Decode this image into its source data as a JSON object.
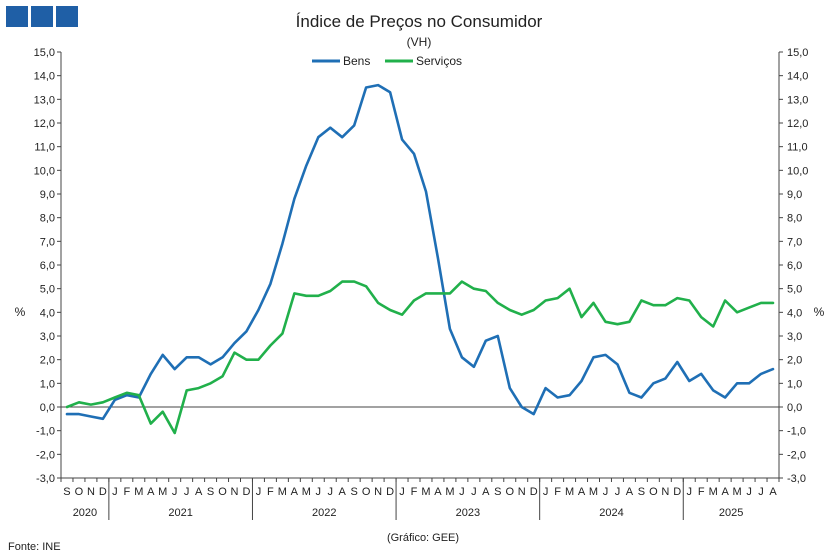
{
  "header": {
    "logo_icon": "ine-logo-icon"
  },
  "chart_data": {
    "type": "line",
    "title": "Índice de Preços no Consumidor",
    "subtitle": "(VH)",
    "ylabel_left": "%",
    "ylabel_right": "%",
    "ylim": [
      -3.0,
      15.0
    ],
    "ytick_step": 1.0,
    "yticks": [
      "-3,0",
      "-2,0",
      "-1,0",
      "0,0",
      "1,0",
      "2,0",
      "3,0",
      "4,0",
      "5,0",
      "6,0",
      "7,0",
      "8,0",
      "9,0",
      "10,0",
      "11,0",
      "12,0",
      "13,0",
      "14,0",
      "15,0"
    ],
    "month_labels": [
      "S",
      "O",
      "N",
      "D",
      "J",
      "F",
      "M",
      "A",
      "M",
      "J",
      "J",
      "A",
      "S",
      "O",
      "N",
      "D",
      "J",
      "F",
      "M",
      "A",
      "M",
      "J",
      "J",
      "A",
      "S",
      "O",
      "N",
      "D",
      "J",
      "F",
      "M",
      "A",
      "M",
      "J",
      "J",
      "A",
      "S",
      "O",
      "N",
      "D",
      "J",
      "F",
      "M",
      "A",
      "M",
      "J",
      "J",
      "A",
      "S",
      "O",
      "N",
      "D",
      "J",
      "F",
      "M",
      "A",
      "M",
      "J",
      "J",
      "A"
    ],
    "years": [
      {
        "label": "2020",
        "months": 4
      },
      {
        "label": "2021",
        "months": 12
      },
      {
        "label": "2022",
        "months": 12
      },
      {
        "label": "2023",
        "months": 12
      },
      {
        "label": "2024",
        "months": 12
      },
      {
        "label": "2025",
        "months": 8
      }
    ],
    "legend": {
      "position": "top-center"
    },
    "series": [
      {
        "name": "Bens",
        "color": "#1f6fb5",
        "values": [
          -0.3,
          -0.3,
          -0.4,
          -0.5,
          0.3,
          0.5,
          0.4,
          1.4,
          2.2,
          1.6,
          2.1,
          2.1,
          1.8,
          2.1,
          2.7,
          3.2,
          4.1,
          5.2,
          6.9,
          8.8,
          10.2,
          11.4,
          11.8,
          11.4,
          11.9,
          13.5,
          13.6,
          13.3,
          11.3,
          10.7,
          9.1,
          6.3,
          3.3,
          2.1,
          1.7,
          2.8,
          3.0,
          0.8,
          0.0,
          -0.3,
          0.8,
          0.4,
          0.5,
          1.1,
          2.1,
          2.2,
          1.8,
          0.6,
          0.4,
          1.0,
          1.2,
          1.9,
          1.1,
          1.4,
          0.7,
          0.4,
          1.0,
          1.0,
          1.4,
          1.6
        ]
      },
      {
        "name": "Serviços",
        "color": "#21b04b",
        "values": [
          0.0,
          0.2,
          0.1,
          0.2,
          0.4,
          0.6,
          0.5,
          -0.7,
          -0.2,
          -1.1,
          0.7,
          0.8,
          1.0,
          1.3,
          2.3,
          2.0,
          2.0,
          2.6,
          3.1,
          4.8,
          4.7,
          4.7,
          4.9,
          5.3,
          5.3,
          5.1,
          4.4,
          4.1,
          3.9,
          4.5,
          4.8,
          4.8,
          4.8,
          5.3,
          5.0,
          4.9,
          4.4,
          4.1,
          3.9,
          4.1,
          4.5,
          4.6,
          5.0,
          3.8,
          4.4,
          3.6,
          3.5,
          3.6,
          4.5,
          4.3,
          4.3,
          4.6,
          4.5,
          3.8,
          3.4,
          4.5,
          4.0,
          4.2,
          4.4,
          4.4
        ]
      }
    ],
    "source": "Fonte: INE",
    "credit": "(Gráfico: GEE)"
  }
}
